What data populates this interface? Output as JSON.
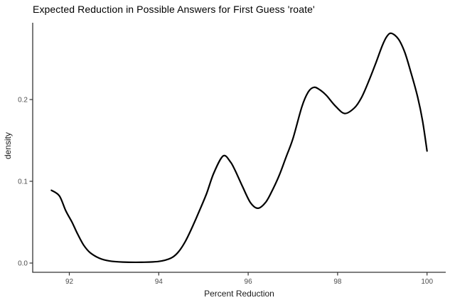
{
  "title": "Expected Reduction in Possible Answers for First Guess 'roate'",
  "chart_data": {
    "type": "line",
    "subtype": "kernel-density",
    "title": "Expected Reduction in Possible Answers for First Guess 'roate'",
    "xlabel": "Percent Reduction",
    "ylabel": "density",
    "x_ticks": [
      92,
      94,
      96,
      98,
      100
    ],
    "y_ticks": [
      0.0,
      0.1,
      0.2
    ],
    "y_tick_labels": [
      "0.0",
      "0.1",
      "0.2"
    ],
    "xlim": [
      91.18,
      100.42
    ],
    "ylim": [
      -0.011,
      0.294
    ],
    "grid": false,
    "legend": "none",
    "line_color": "#000000",
    "axis_text_color": "#4d4d4d",
    "axis_line_color": "#333333",
    "points": [
      [
        91.6,
        0.089
      ],
      [
        91.78,
        0.082
      ],
      [
        91.92,
        0.064
      ],
      [
        92.06,
        0.05
      ],
      [
        92.19,
        0.035
      ],
      [
        92.32,
        0.022
      ],
      [
        92.46,
        0.013
      ],
      [
        92.67,
        0.006
      ],
      [
        92.9,
        0.0025
      ],
      [
        93.2,
        0.0012
      ],
      [
        93.6,
        0.001
      ],
      [
        94.0,
        0.002
      ],
      [
        94.27,
        0.006
      ],
      [
        94.43,
        0.013
      ],
      [
        94.59,
        0.026
      ],
      [
        94.75,
        0.044
      ],
      [
        94.91,
        0.064
      ],
      [
        95.07,
        0.085
      ],
      [
        95.23,
        0.11
      ],
      [
        95.44,
        0.131
      ],
      [
        95.6,
        0.124
      ],
      [
        95.71,
        0.113
      ],
      [
        95.87,
        0.094
      ],
      [
        96.05,
        0.074
      ],
      [
        96.22,
        0.067
      ],
      [
        96.4,
        0.075
      ],
      [
        96.55,
        0.09
      ],
      [
        96.7,
        0.108
      ],
      [
        96.85,
        0.13
      ],
      [
        97.0,
        0.152
      ],
      [
        97.2,
        0.191
      ],
      [
        97.34,
        0.209
      ],
      [
        97.47,
        0.215
      ],
      [
        97.6,
        0.212
      ],
      [
        97.75,
        0.205
      ],
      [
        97.95,
        0.192
      ],
      [
        98.16,
        0.183
      ],
      [
        98.38,
        0.19
      ],
      [
        98.54,
        0.203
      ],
      [
        98.7,
        0.223
      ],
      [
        98.85,
        0.244
      ],
      [
        99.0,
        0.266
      ],
      [
        99.1,
        0.277
      ],
      [
        99.2,
        0.281
      ],
      [
        99.36,
        0.274
      ],
      [
        99.5,
        0.258
      ],
      [
        99.63,
        0.235
      ],
      [
        99.79,
        0.203
      ],
      [
        99.9,
        0.174
      ],
      [
        100.0,
        0.137
      ]
    ]
  }
}
